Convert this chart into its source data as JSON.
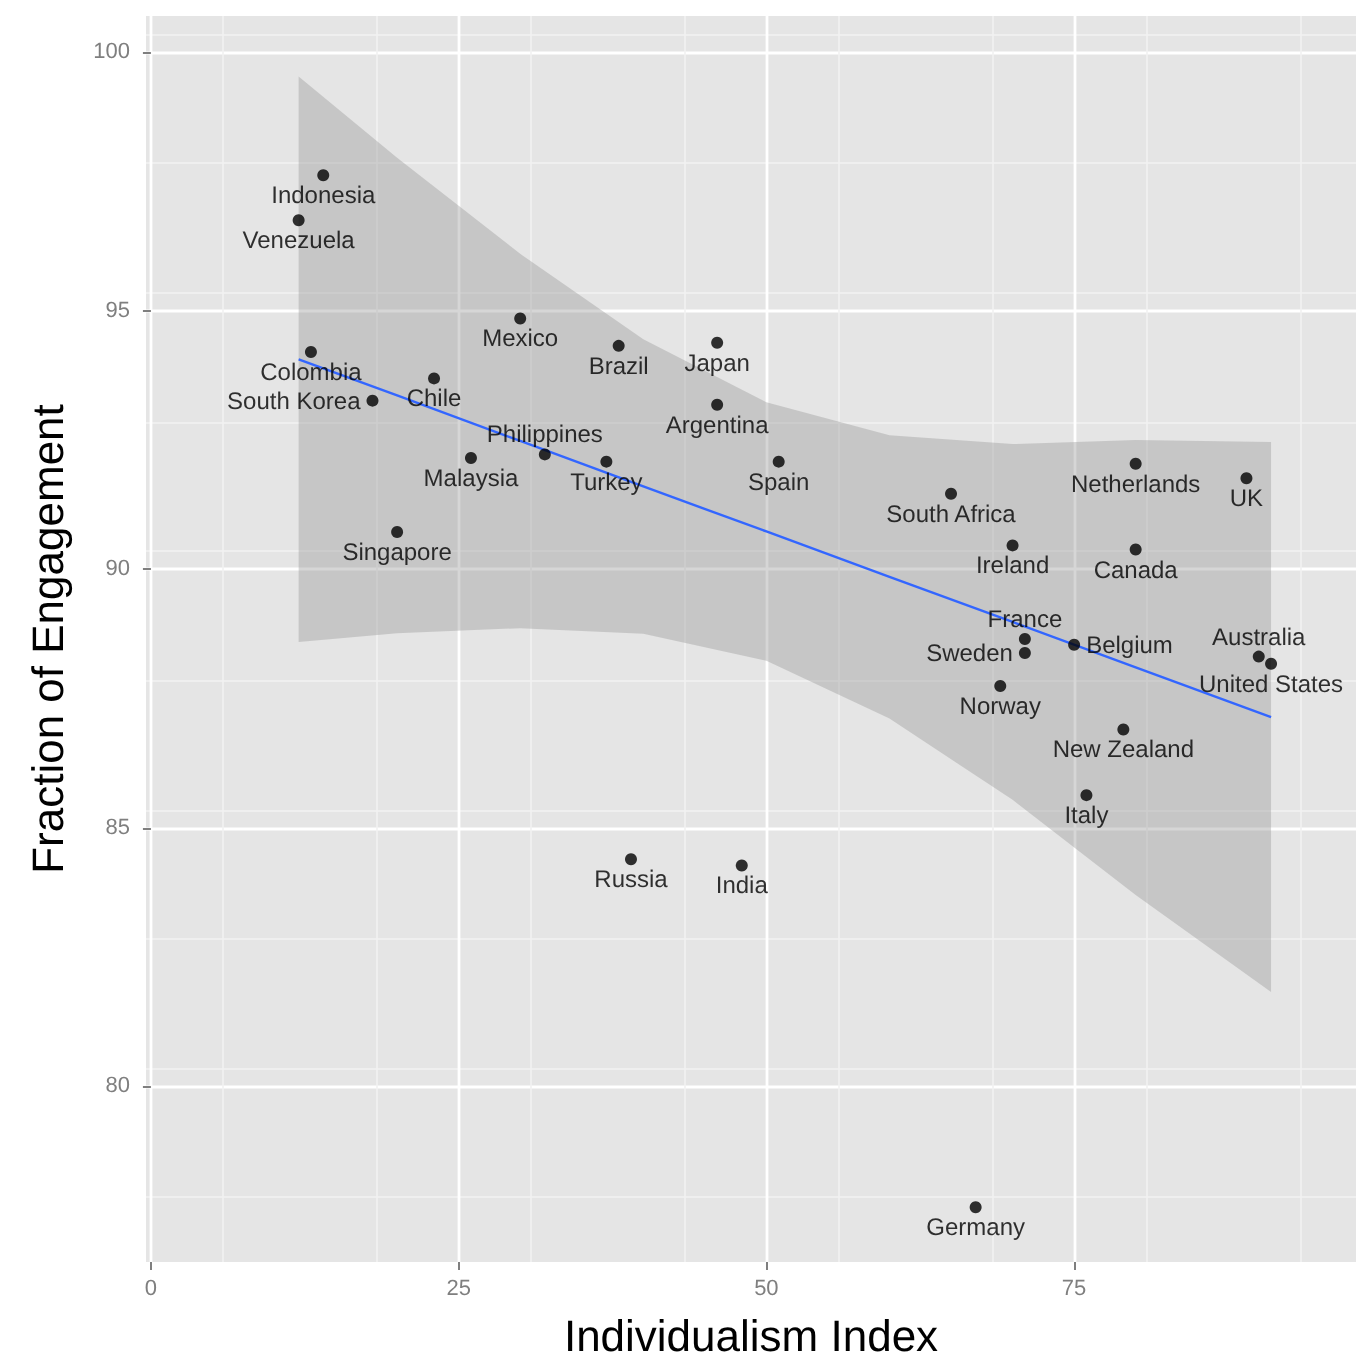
{
  "chart_data": {
    "type": "scatter",
    "xlabel": "Individualism Index",
    "ylabel": "Fraction of Engagement",
    "xlim": [
      -0.4,
      97.9
    ],
    "ylim": [
      76.6,
      100.7
    ],
    "xticks": [
      0,
      25,
      50,
      75
    ],
    "yticks": [
      80,
      85,
      90,
      95,
      100
    ],
    "grid": true,
    "series": [
      {
        "marker": "circle",
        "color": "#000000",
        "x": [
          14,
          12,
          30,
          13,
          38,
          46,
          23,
          18,
          46,
          32,
          26,
          37,
          20,
          51,
          65,
          80,
          89,
          70,
          80,
          71,
          75,
          71,
          69,
          90,
          91,
          79,
          76,
          39,
          48,
          67
        ],
        "values": [
          97.62,
          96.75,
          94.85,
          94.2,
          94.32,
          94.38,
          93.69,
          93.26,
          93.18,
          92.22,
          92.15,
          92.08,
          90.72,
          92.08,
          91.46,
          92.04,
          91.76,
          90.46,
          90.38,
          88.65,
          88.54,
          88.38,
          87.74,
          88.31,
          88.17,
          86.9,
          85.63,
          84.39,
          84.27,
          77.66
        ],
        "value_labels": [
          "Indonesia",
          "Venezuela",
          "Mexico",
          "Colombia",
          "Brazil",
          "Japan",
          "Chile",
          "South Korea",
          "Argentina",
          "Philippines",
          "Malaysia",
          "Turkey",
          "Singapore",
          "Spain",
          "South Africa",
          "Netherlands",
          "UK",
          "Ireland",
          "Canada",
          "France",
          "Belgium",
          "Sweden",
          "Norway",
          "Australia",
          "United States",
          "New Zealand",
          "Italy",
          "Russia",
          "India",
          "Germany"
        ]
      },
      {
        "type": "line",
        "color": "#3366ff",
        "x": [
          12,
          20,
          30,
          40,
          50,
          60,
          70,
          80,
          91
        ],
        "values": [
          94.06,
          93.36,
          92.48,
          91.6,
          90.73,
          89.85,
          88.98,
          88.1,
          87.14
        ],
        "lower": [
          88.59,
          88.76,
          88.86,
          88.75,
          88.23,
          87.11,
          85.54,
          83.7,
          81.82
        ],
        "upper": [
          99.53,
          97.96,
          96.1,
          94.45,
          93.23,
          92.59,
          92.42,
          92.5,
          92.46
        ]
      }
    ]
  }
}
